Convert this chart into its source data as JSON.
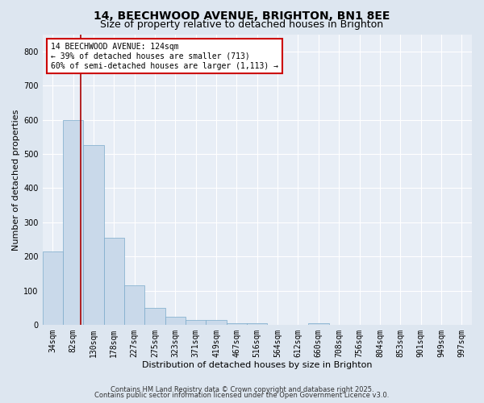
{
  "title_line1": "14, BEECHWOOD AVENUE, BRIGHTON, BN1 8EE",
  "title_line2": "Size of property relative to detached houses in Brighton",
  "xlabel": "Distribution of detached houses by size in Brighton",
  "ylabel": "Number of detached properties",
  "bar_labels": [
    "34sqm",
    "82sqm",
    "130sqm",
    "178sqm",
    "227sqm",
    "275sqm",
    "323sqm",
    "371sqm",
    "419sqm",
    "467sqm",
    "516sqm",
    "564sqm",
    "612sqm",
    "660sqm",
    "708sqm",
    "756sqm",
    "804sqm",
    "853sqm",
    "901sqm",
    "949sqm",
    "997sqm"
  ],
  "bar_heights": [
    215,
    600,
    525,
    255,
    115,
    50,
    25,
    15,
    15,
    5,
    5,
    0,
    0,
    5,
    0,
    0,
    0,
    0,
    0,
    0,
    0
  ],
  "bar_color": "#c9d9ea",
  "bar_edge_color": "#7aaaca",
  "vline_color": "#aa0000",
  "ylim": [
    0,
    850
  ],
  "yticks": [
    0,
    100,
    200,
    300,
    400,
    500,
    600,
    700,
    800
  ],
  "annotation_line1": "14 BEECHWOOD AVENUE: 124sqm",
  "annotation_line2": "← 39% of detached houses are smaller (713)",
  "annotation_line3": "60% of semi-detached houses are larger (1,113) →",
  "annotation_box_edge": "#cc0000",
  "annotation_box_bg": "#ffffff",
  "footer_line1": "Contains HM Land Registry data © Crown copyright and database right 2025.",
  "footer_line2": "Contains public sector information licensed under the Open Government Licence v3.0.",
  "bg_color": "#dde6f0",
  "plot_bg_color": "#e8eef6",
  "grid_color": "#ffffff",
  "title_fontsize": 10,
  "subtitle_fontsize": 9,
  "axis_label_fontsize": 8,
  "tick_fontsize": 7,
  "annotation_fontsize": 7,
  "footer_fontsize": 6
}
